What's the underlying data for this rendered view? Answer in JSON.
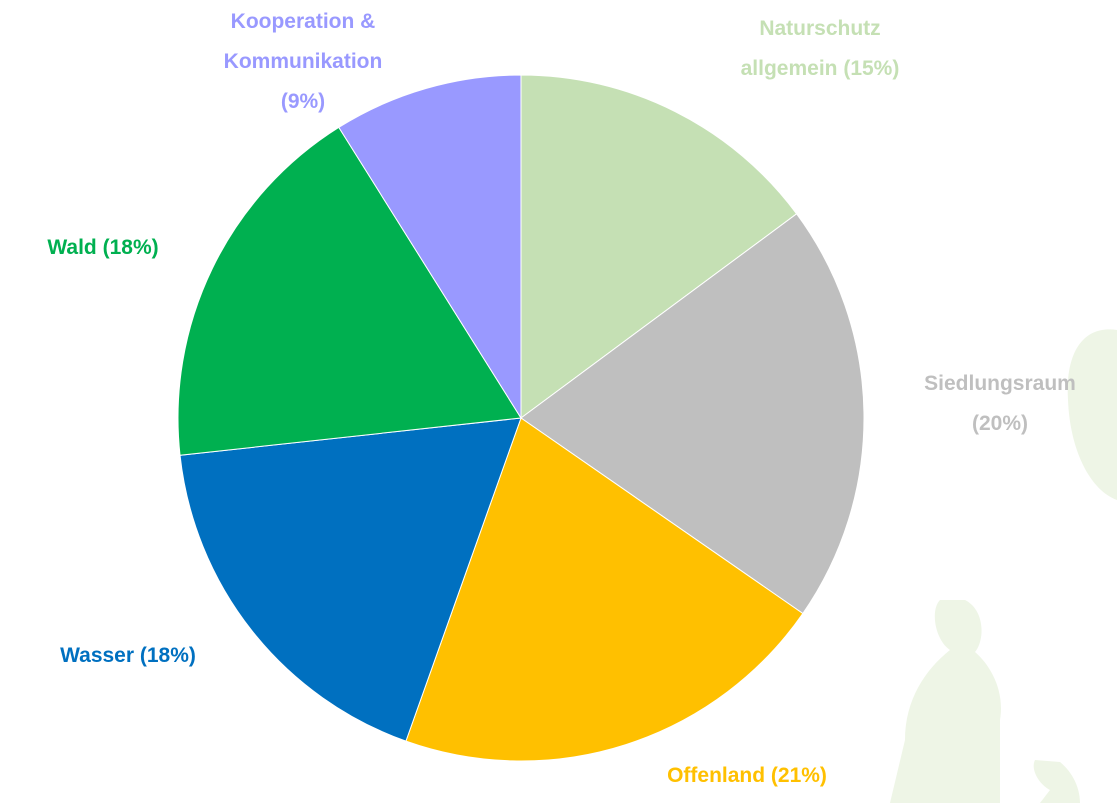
{
  "chart_data": {
    "type": "pie",
    "categories": [
      "Naturschutz allgemein",
      "Siedlungsraum",
      "Offenland",
      "Wasser",
      "Wald",
      "Kooperation & Kommunikation"
    ],
    "values": [
      15,
      20,
      21,
      18,
      18,
      9
    ],
    "value_labels": [
      "(15%)",
      "(20%)",
      "(21%)",
      "(18%)",
      "(18%)",
      "(9%)"
    ],
    "colors": [
      "#c5e0b4",
      "#bfbfbf",
      "#ffc000",
      "#0070c0",
      "#00b050",
      "#9999ff"
    ]
  }
}
